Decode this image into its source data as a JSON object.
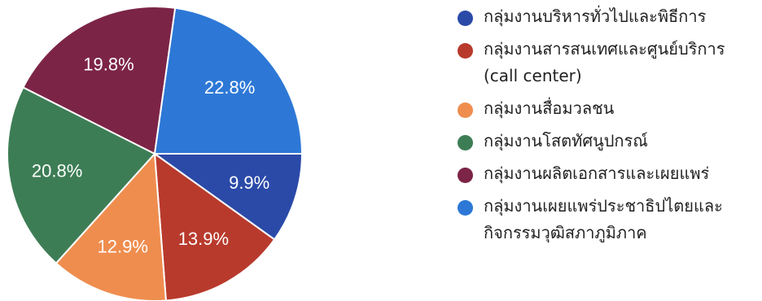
{
  "chart_data": {
    "type": "pie",
    "title": "",
    "labels": [
      "กลุ่มงานบริหารทั่วไปและพิธีการ",
      "กลุ่มงานสารสนเทศและศูนย์บริการ\n(call center)",
      "กลุ่มงานสื่อมวลชน",
      "กลุ่มงานโสตทัศนูปกรณ์",
      "กลุ่มงานผลิตเอกสารและเผยแพร่",
      "กลุ่มงานเผยแพร่ประชาธิปไตยและ\nกิจกรรมวุฒิสภาภูมิภาค"
    ],
    "values": [
      9.9,
      13.9,
      12.9,
      20.8,
      19.8,
      22.8
    ],
    "value_labels": [
      "9.9%",
      "13.9%",
      "12.9%",
      "20.8%",
      "19.8%",
      "22.8%"
    ],
    "colors": [
      "#2b4aa8",
      "#b83a2c",
      "#ef8d4f",
      "#3d7d55",
      "#7c2446",
      "#2d78d6"
    ],
    "start_angle_deg": 90,
    "direction": "clockwise",
    "legend_position": "right"
  }
}
